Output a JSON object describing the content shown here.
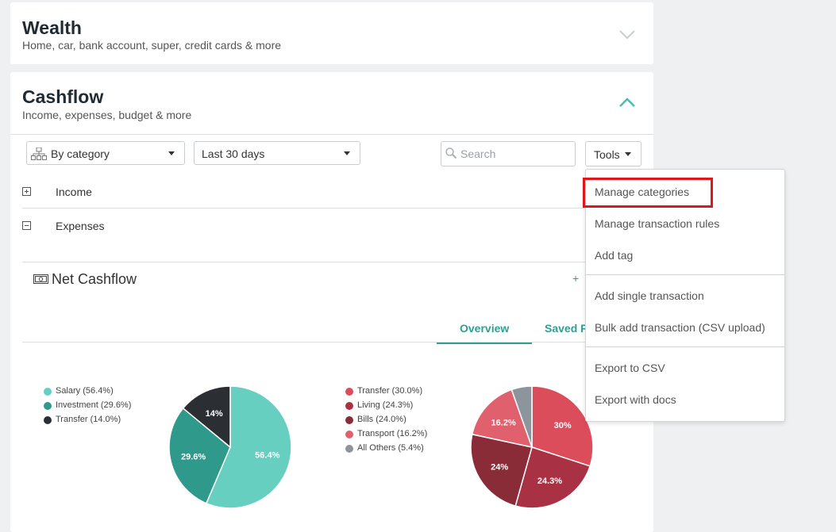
{
  "wealth": {
    "title": "Wealth",
    "subtitle": "Home, car, bank account, super, credit cards & more"
  },
  "cashflow": {
    "title": "Cashflow",
    "subtitle": "Income, expenses, budget & more",
    "group_by": "By category",
    "period": "Last 30 days",
    "search_placeholder": "Search",
    "tools_label": "Tools",
    "rows": [
      {
        "label": "Income",
        "expanded": false
      },
      {
        "label": "Expenses",
        "expanded": true
      }
    ],
    "net_cashflow": "Net Cashflow",
    "net_plus": "+",
    "tabs": [
      {
        "label": "Overview",
        "active": true
      },
      {
        "label": "Saved R"
      }
    ]
  },
  "tools_menu": {
    "items": [
      "Manage categories",
      "Manage transaction rules",
      "Add tag",
      "Add single transaction",
      "Bulk add transaction (CSV upload)",
      "Export to CSV",
      "Export with docs"
    ],
    "highlighted": "Manage categories"
  },
  "colors": {
    "accent": "#2f9f92",
    "highlight_border": "#e0161b"
  },
  "chart_data": [
    {
      "type": "pie",
      "categories": [
        "Salary",
        "Investment",
        "Transfer"
      ],
      "values": [
        56.4,
        29.6,
        14.0
      ],
      "legend": [
        "Salary (56.4%)",
        "Investment (29.6%)",
        "Transfer (14.0%)"
      ],
      "slice_labels": [
        "56.4%",
        "29.6%",
        "14%"
      ],
      "colors": [
        "#66cfc0",
        "#2f9a8b",
        "#2b2f33"
      ]
    },
    {
      "type": "pie",
      "categories": [
        "Transfer",
        "Living",
        "Bills",
        "Transport",
        "All Others"
      ],
      "values": [
        30.0,
        24.3,
        24.0,
        16.2,
        5.4
      ],
      "legend": [
        "Transfer (30.0%)",
        "Living (24.3%)",
        "Bills (24.0%)",
        "Transport (16.2%)",
        "All Others (5.4%)"
      ],
      "slice_labels": [
        "30%",
        "24.3%",
        "24%",
        "16.2%",
        ""
      ],
      "colors": [
        "#dc4d5c",
        "#a83243",
        "#8a2c38",
        "#e0606e",
        "#8c959c"
      ]
    }
  ]
}
